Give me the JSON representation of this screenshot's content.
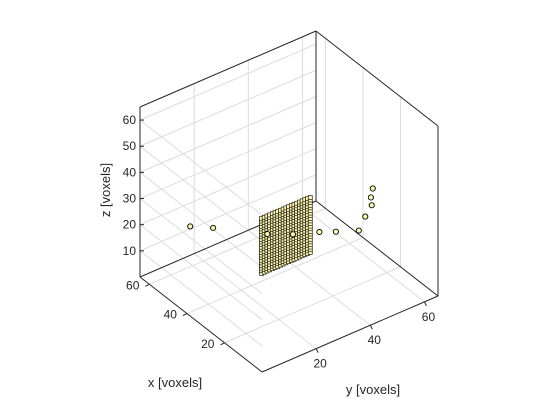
{
  "chart_data": {
    "type": "scatter",
    "projection": "3d",
    "title": "",
    "xlabel": "x [voxels]",
    "ylabel": "y [voxels]",
    "zlabel": "z [voxels]",
    "xlim": [
      0,
      65
    ],
    "ylim": [
      0,
      65
    ],
    "zlim": [
      0,
      65
    ],
    "xticks": [
      20,
      40,
      60
    ],
    "yticks": [
      20,
      40,
      60
    ],
    "zticks": [
      10,
      20,
      30,
      40,
      50,
      60
    ],
    "grid": true,
    "colors": {
      "marker_fill": "#fff7b0",
      "marker_edge": "#000000",
      "axes": "#262626",
      "grid": "#dcdcdc"
    },
    "series": [
      {
        "marker": "square-grid",
        "points": {
          "x_values": [
            32
          ],
          "y_values": [
            22,
            23,
            24,
            25,
            26,
            27,
            28,
            29,
            30,
            31,
            32,
            33,
            34,
            35,
            36,
            37,
            38,
            39,
            40
          ],
          "z_values": [
            10,
            11,
            12,
            13,
            14,
            15,
            16,
            17,
            18,
            19,
            20,
            21,
            22,
            23,
            24,
            25,
            26,
            27,
            28,
            29,
            30,
            31
          ]
        }
      },
      {
        "marker": "circle",
        "points": [
          {
            "x": 57,
            "y": 13,
            "z": 18
          },
          {
            "x": 52,
            "y": 18,
            "z": 18
          },
          {
            "x": 39,
            "y": 29,
            "z": 18
          },
          {
            "x": 34,
            "y": 35,
            "z": 18
          },
          {
            "x": 30,
            "y": 42,
            "z": 18
          },
          {
            "x": 27,
            "y": 46,
            "z": 18
          },
          {
            "x": 22,
            "y": 51,
            "z": 19
          },
          {
            "x": 20,
            "y": 52,
            "z": 25
          },
          {
            "x": 18,
            "y": 53,
            "z": 30
          },
          {
            "x": 17,
            "y": 52,
            "z": 34
          },
          {
            "x": 16,
            "y": 52,
            "z": 38
          }
        ]
      }
    ]
  }
}
